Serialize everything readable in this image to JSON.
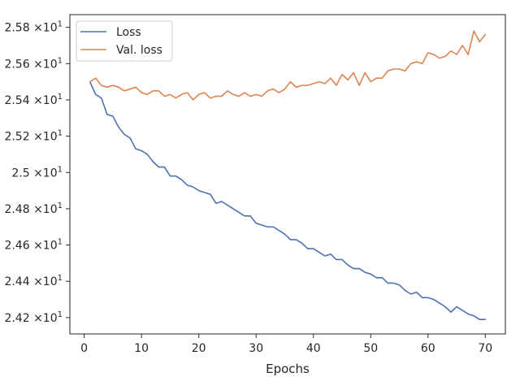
{
  "chart_data": {
    "type": "line",
    "title": "",
    "xlabel": "Epochs",
    "ylabel": "",
    "xlim": [
      -2.5,
      73.5
    ],
    "ylim": [
      24.11,
      25.87
    ],
    "x_ticks": [
      0,
      10,
      20,
      30,
      40,
      50,
      60,
      70
    ],
    "y_ticks": [
      24.2,
      24.4,
      24.6,
      24.8,
      25.0,
      25.2,
      25.4,
      25.6,
      25.8
    ],
    "y_tick_labels": [
      {
        "mantissa": "2.42",
        "exp": "1"
      },
      {
        "mantissa": "2.44",
        "exp": "1"
      },
      {
        "mantissa": "2.46",
        "exp": "1"
      },
      {
        "mantissa": "2.48",
        "exp": "1"
      },
      {
        "mantissa": "2.5",
        "exp": "1"
      },
      {
        "mantissa": "2.52",
        "exp": "1"
      },
      {
        "mantissa": "2.54",
        "exp": "1"
      },
      {
        "mantissa": "2.56",
        "exp": "1"
      },
      {
        "mantissa": "2.58",
        "exp": "1"
      }
    ],
    "y_tick_times": "×10",
    "grid": false,
    "legend_position": "top-left",
    "x": [
      1,
      2,
      3,
      4,
      5,
      6,
      7,
      8,
      9,
      10,
      11,
      12,
      13,
      14,
      15,
      16,
      17,
      18,
      19,
      20,
      21,
      22,
      23,
      24,
      25,
      26,
      27,
      28,
      29,
      30,
      31,
      32,
      33,
      34,
      35,
      36,
      37,
      38,
      39,
      40,
      41,
      42,
      43,
      44,
      45,
      46,
      47,
      48,
      49,
      50,
      51,
      52,
      53,
      54,
      55,
      56,
      57,
      58,
      59,
      60,
      61,
      62,
      63,
      64,
      65,
      66,
      67,
      68,
      69,
      70
    ],
    "series": [
      {
        "name": "Loss",
        "color": "#4c72b0",
        "values": [
          25.5,
          25.43,
          25.41,
          25.32,
          25.31,
          25.25,
          25.21,
          25.19,
          25.13,
          25.12,
          25.1,
          25.06,
          25.03,
          25.03,
          24.98,
          24.98,
          24.96,
          24.93,
          24.92,
          24.9,
          24.89,
          24.88,
          24.83,
          24.84,
          24.82,
          24.8,
          24.78,
          24.76,
          24.76,
          24.72,
          24.71,
          24.7,
          24.7,
          24.68,
          24.66,
          24.63,
          24.63,
          24.61,
          24.58,
          24.58,
          24.56,
          24.54,
          24.55,
          24.52,
          24.52,
          24.49,
          24.47,
          24.47,
          24.45,
          24.44,
          24.42,
          24.42,
          24.39,
          24.39,
          24.38,
          24.35,
          24.33,
          24.34,
          24.31,
          24.31,
          24.3,
          24.28,
          24.26,
          24.23,
          24.26,
          24.24,
          24.22,
          24.21,
          24.19,
          24.19
        ]
      },
      {
        "name": "Val. loss",
        "color": "#dd8452",
        "values": [
          25.5,
          25.52,
          25.48,
          25.47,
          25.48,
          25.47,
          25.45,
          25.46,
          25.47,
          25.44,
          25.43,
          25.45,
          25.45,
          25.42,
          25.43,
          25.41,
          25.43,
          25.44,
          25.4,
          25.43,
          25.44,
          25.41,
          25.42,
          25.42,
          25.45,
          25.43,
          25.42,
          25.44,
          25.42,
          25.43,
          25.42,
          25.45,
          25.46,
          25.44,
          25.46,
          25.5,
          25.47,
          25.48,
          25.48,
          25.49,
          25.5,
          25.49,
          25.52,
          25.48,
          25.54,
          25.51,
          25.55,
          25.48,
          25.55,
          25.5,
          25.52,
          25.52,
          25.56,
          25.57,
          25.57,
          25.56,
          25.6,
          25.61,
          25.6,
          25.66,
          25.65,
          25.63,
          25.64,
          25.67,
          25.65,
          25.7,
          25.65,
          25.78,
          25.72,
          25.76
        ]
      }
    ]
  }
}
